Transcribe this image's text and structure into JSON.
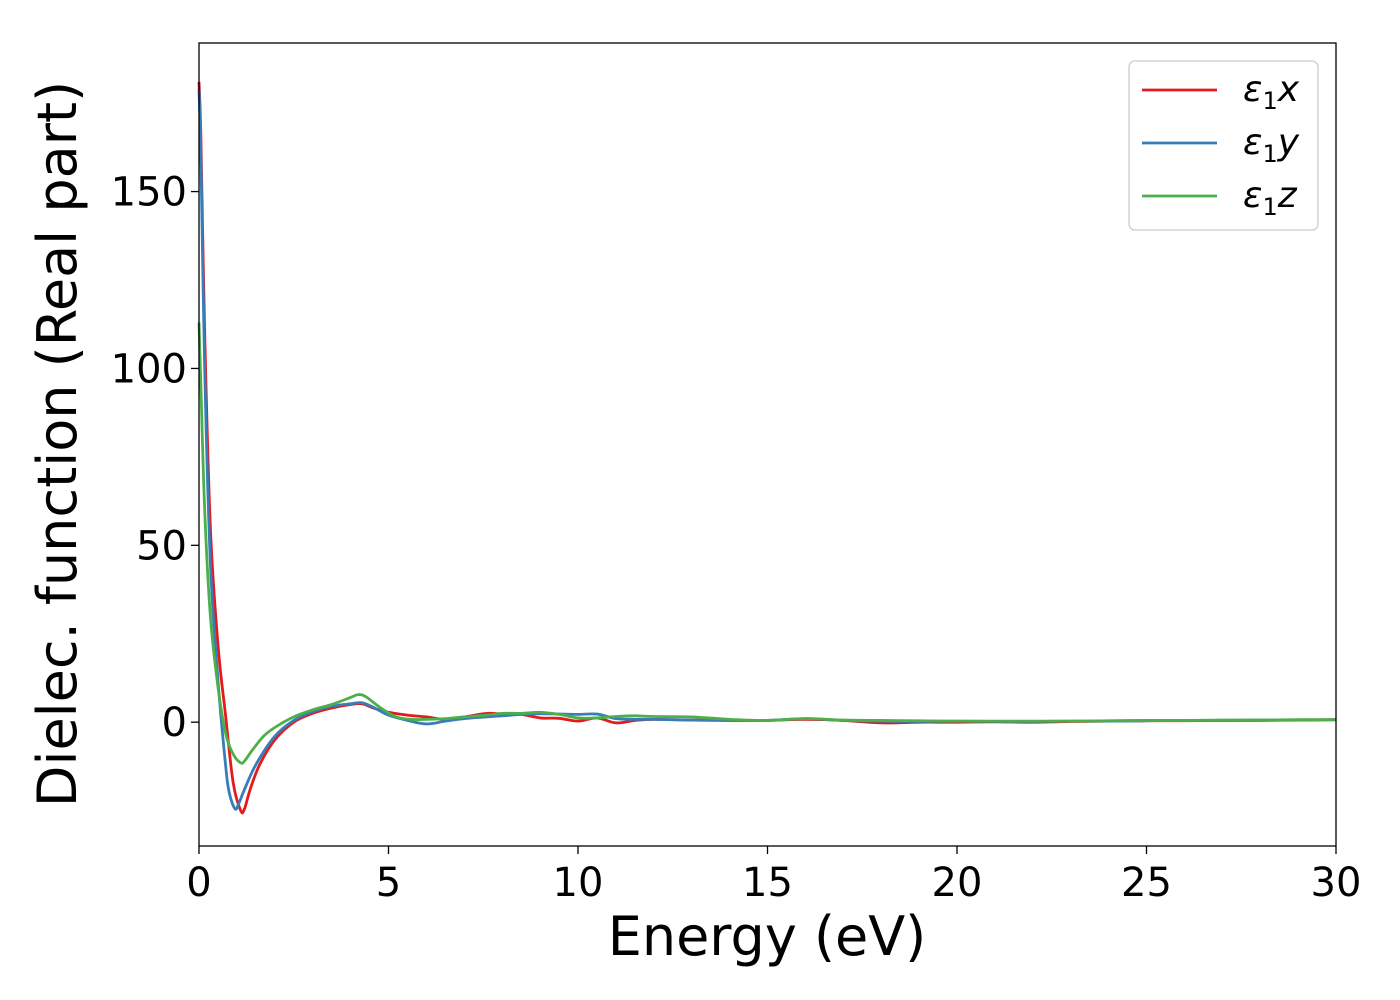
{
  "chart_data": {
    "type": "line",
    "xlabel": "Energy (eV)",
    "ylabel": "Dielec. function (Real part)",
    "xlim": [
      0,
      30
    ],
    "ylim": [
      -35,
      192
    ],
    "xticks": [
      0,
      5,
      10,
      15,
      20,
      25,
      30
    ],
    "yticks": [
      0,
      50,
      100,
      150
    ],
    "grid": false,
    "legend_position": "top-right",
    "series": [
      {
        "name": "ε1x",
        "legend_base": "ε",
        "legend_sub": "1",
        "legend_suffix": "x",
        "color": "#e41a1c",
        "x": [
          0,
          0.05,
          0.15,
          0.3,
          0.5,
          0.7,
          0.9,
          1.1,
          1.2,
          1.35,
          1.6,
          2.0,
          2.5,
          3.0,
          3.5,
          4.0,
          4.3,
          4.6,
          5.0,
          5.5,
          6.0,
          6.5,
          7.0,
          7.6,
          8.0,
          8.5,
          9.0,
          9.5,
          10.0,
          10.5,
          11.0,
          11.5,
          12.0,
          13.0,
          14.0,
          15.0,
          16.0,
          17.0,
          18.0,
          19.0,
          20.0,
          21.0,
          22.0,
          23.0,
          24.0,
          25.0,
          26.0,
          27.0,
          28.0,
          29.0,
          30.0
        ],
        "y": [
          181,
          165,
          110,
          55,
          22,
          2,
          -17,
          -25,
          -24.5,
          -19,
          -12,
          -5,
          0,
          2.5,
          4,
          5,
          5.2,
          4,
          2.8,
          2,
          1.5,
          0.8,
          1.5,
          2.5,
          2.3,
          2.2,
          1.2,
          1.1,
          0.3,
          1.2,
          -0.2,
          0.5,
          0.8,
          0.6,
          0.5,
          0.5,
          0.8,
          0.5,
          -0.2,
          0,
          0,
          0.1,
          0,
          0.2,
          0.3,
          0.4,
          0.4,
          0.5,
          0.5,
          0.6,
          0.7
        ]
      },
      {
        "name": "ε1y",
        "legend_base": "ε",
        "legend_sub": "1",
        "legend_suffix": "y",
        "color": "#377eb8",
        "x": [
          0,
          0.05,
          0.15,
          0.3,
          0.5,
          0.7,
          0.8,
          0.95,
          1.05,
          1.2,
          1.5,
          2.0,
          2.5,
          3.0,
          3.5,
          4.0,
          4.3,
          4.6,
          5.0,
          5.5,
          6.0,
          6.5,
          7.0,
          7.6,
          8.0,
          8.5,
          9.0,
          9.5,
          10.0,
          10.5,
          11.0,
          11.5,
          12.0,
          13.0,
          14.0,
          15.0,
          16.0,
          17.0,
          18.0,
          19.0,
          20.0,
          21.0,
          22.0,
          23.0,
          24.0,
          25.0,
          26.0,
          27.0,
          28.0,
          29.0,
          30.0
        ],
        "y": [
          179,
          160,
          100,
          45,
          12,
          -12,
          -20,
          -24.5,
          -23,
          -19,
          -12,
          -4,
          0.5,
          3,
          4.5,
          5.2,
          5.5,
          4.2,
          2,
          0.5,
          -0.5,
          0.3,
          1,
          1.5,
          1.8,
          2.2,
          2.4,
          2.3,
          2.2,
          2.3,
          1,
          0.8,
          0.8,
          0.6,
          0.5,
          0.5,
          1,
          0.5,
          0.3,
          0.2,
          0.3,
          0.2,
          0.2,
          0.3,
          0.3,
          0.4,
          0.5,
          0.5,
          0.6,
          0.6,
          0.7
        ]
      },
      {
        "name": "ε1z",
        "legend_base": "ε",
        "legend_sub": "1",
        "legend_suffix": "z",
        "color": "#4daf4a",
        "x": [
          0,
          0.05,
          0.15,
          0.3,
          0.5,
          0.7,
          0.9,
          1.1,
          1.2,
          1.4,
          1.7,
          2.0,
          2.5,
          3.0,
          3.5,
          4.0,
          4.2,
          4.4,
          4.8,
          5.2,
          5.6,
          6.0,
          6.5,
          7.0,
          7.6,
          8.0,
          8.5,
          9.0,
          9.5,
          10.0,
          10.5,
          11.0,
          11.5,
          12.0,
          13.0,
          14.0,
          15.0,
          16.0,
          17.0,
          18.0,
          19.0,
          20.0,
          21.0,
          22.0,
          23.0,
          24.0,
          25.0,
          26.0,
          27.0,
          28.0,
          29.0,
          30.0
        ],
        "y": [
          113,
          95,
          60,
          30,
          10,
          -3,
          -9,
          -11.5,
          -11,
          -8,
          -4,
          -1.5,
          1.5,
          3.5,
          5,
          7,
          7.8,
          7.2,
          4,
          1.5,
          0.8,
          0.8,
          1,
          1.5,
          2,
          2.5,
          2.5,
          2.8,
          2.2,
          1.2,
          1.2,
          1.6,
          1.8,
          1.6,
          1.5,
          0.8,
          0.5,
          1,
          0.6,
          0.5,
          0.4,
          0.3,
          0.3,
          0.3,
          0.3,
          0.4,
          0.5,
          0.5,
          0.6,
          0.6,
          0.7,
          0.7
        ]
      }
    ]
  }
}
